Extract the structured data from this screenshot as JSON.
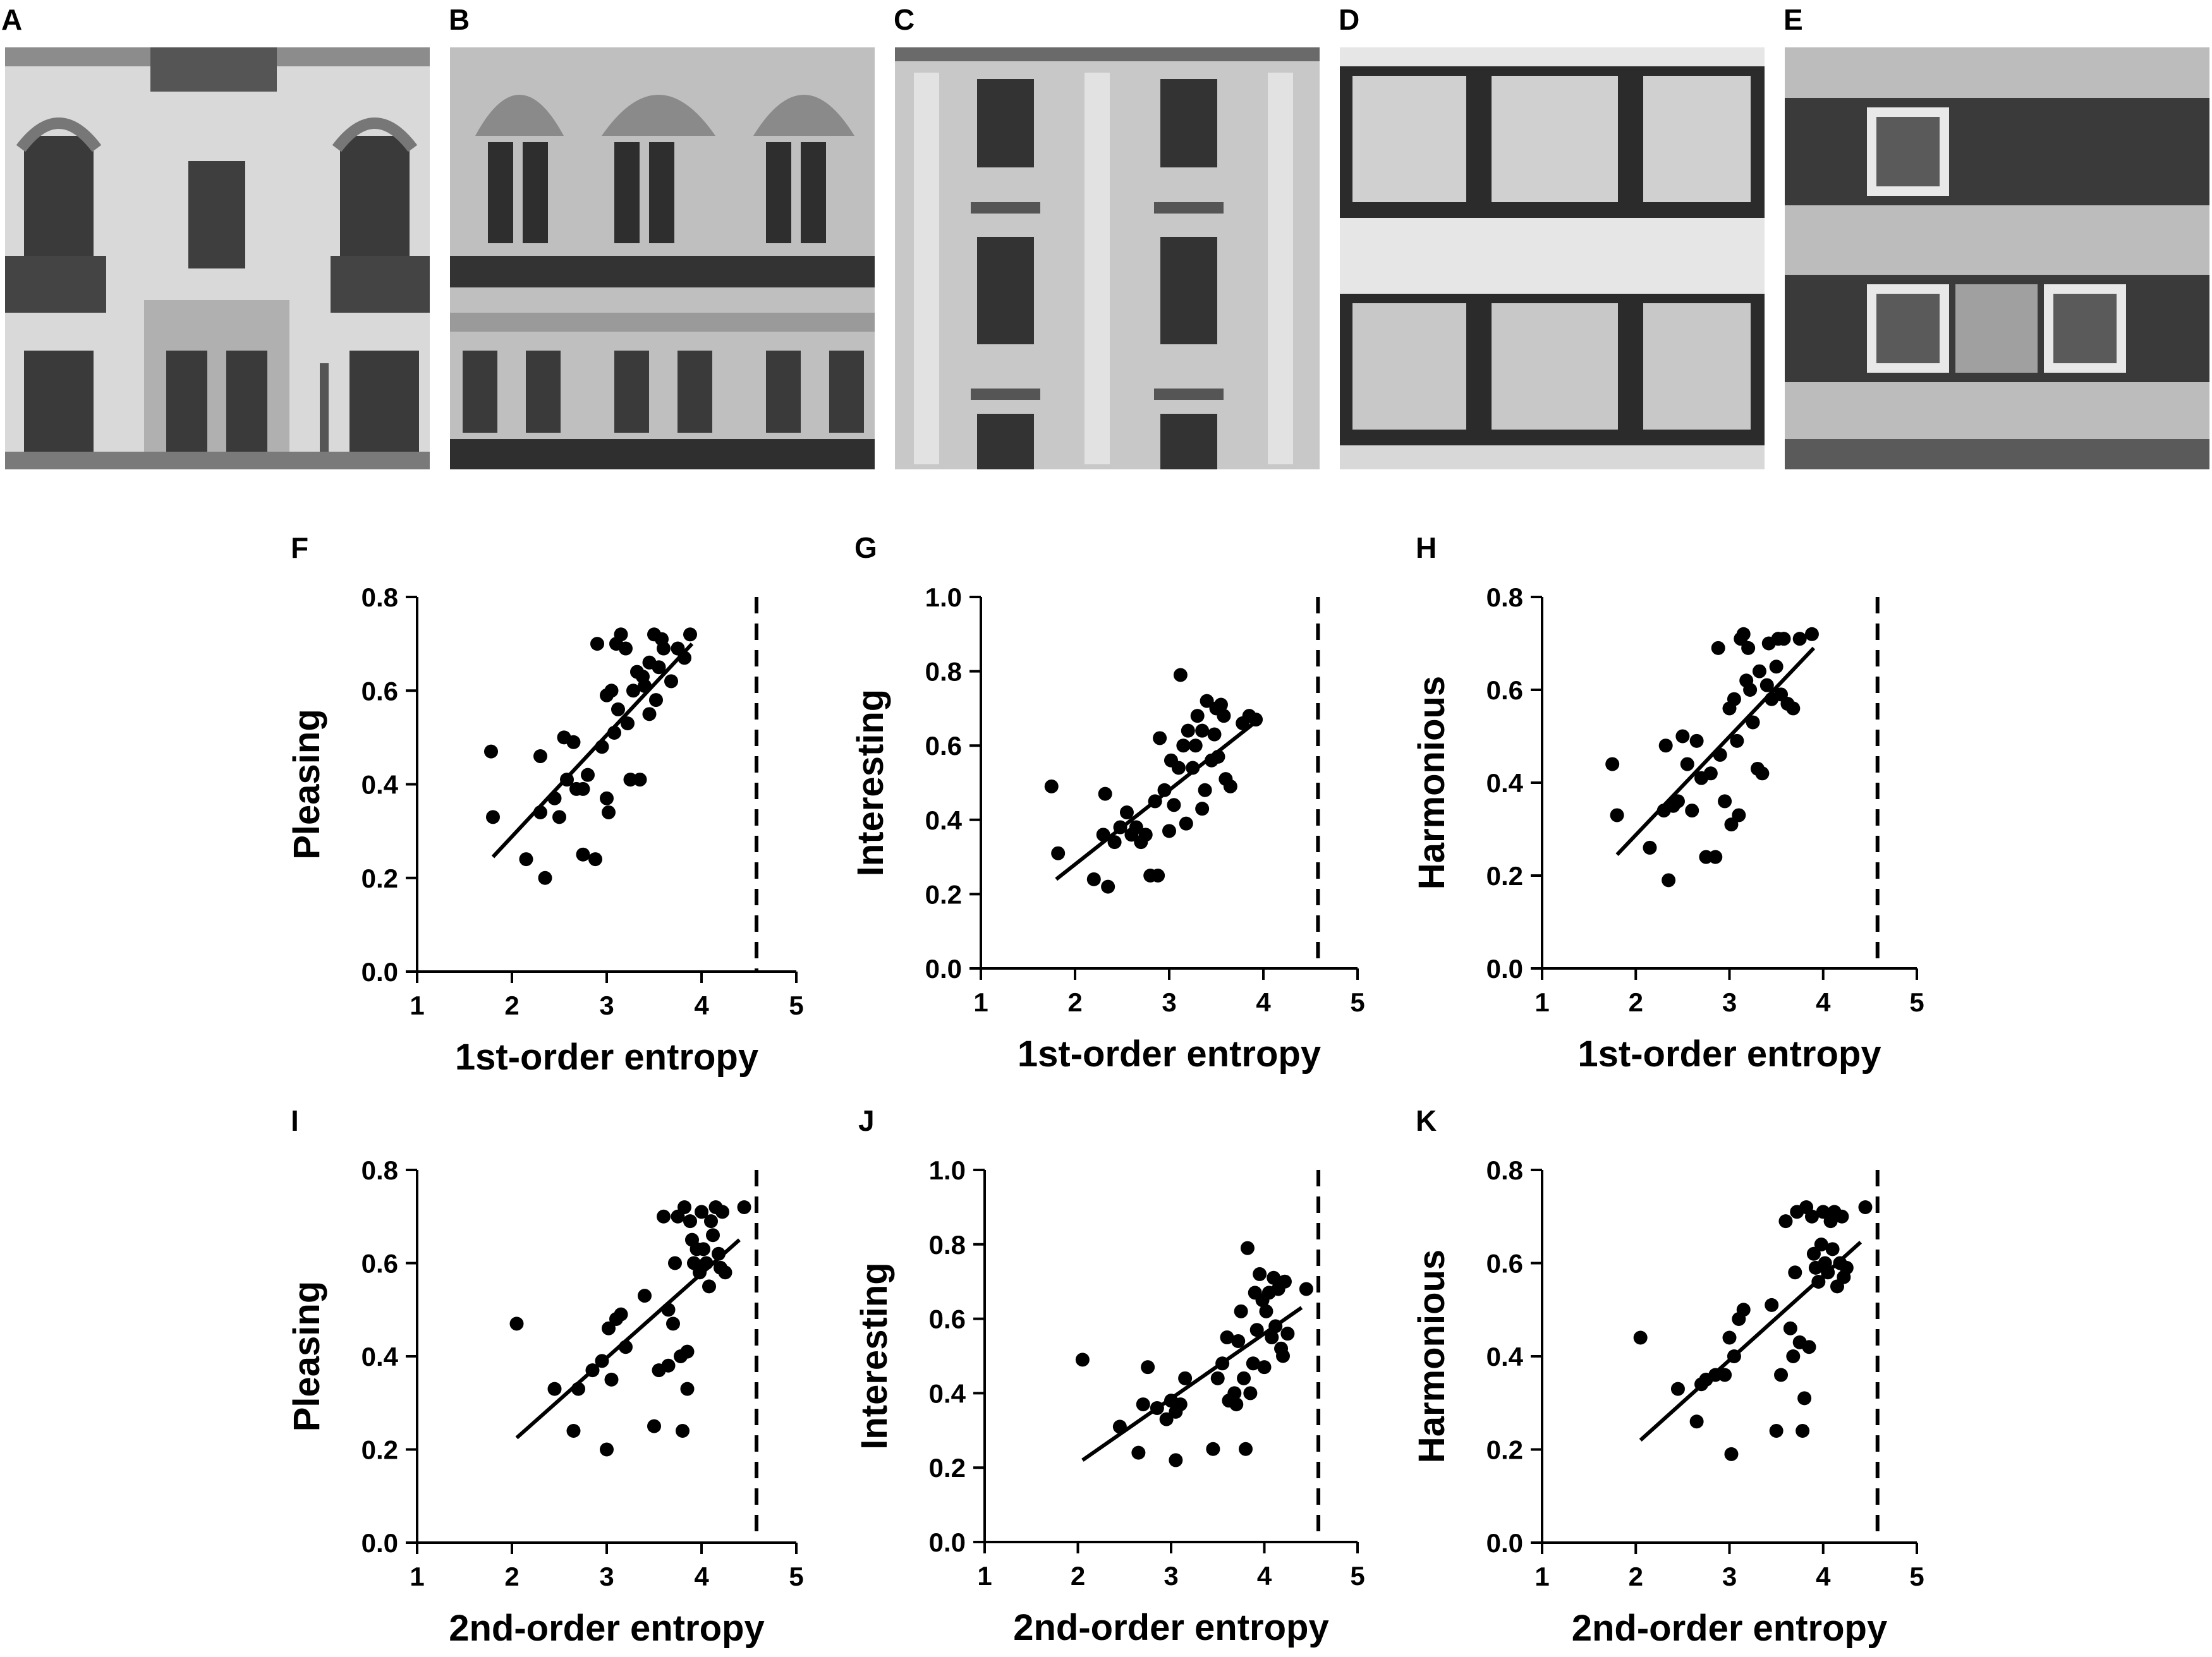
{
  "photo_panels": [
    {
      "label": "A"
    },
    {
      "label": "B"
    },
    {
      "label": "C"
    },
    {
      "label": "D"
    },
    {
      "label": "E"
    }
  ],
  "chart_data": [
    {
      "id": "F",
      "type": "scatter",
      "xlabel": "1st-order entropy",
      "ylabel": "Pleasing",
      "xlim": [
        1,
        5
      ],
      "ylim": [
        0,
        0.8
      ],
      "xticks": [
        "1",
        "2",
        "3",
        "4",
        "5"
      ],
      "yticks": [
        "0.0",
        "0.2",
        "0.4",
        "0.6",
        "0.8"
      ],
      "fit_line": {
        "x": [
          1.8,
          3.9
        ],
        "y": [
          0.245,
          0.7
        ]
      },
      "reference_line_x": 4.58,
      "points": [
        [
          1.78,
          0.47
        ],
        [
          1.8,
          0.33
        ],
        [
          2.15,
          0.24
        ],
        [
          2.3,
          0.46
        ],
        [
          2.3,
          0.34
        ],
        [
          2.35,
          0.2
        ],
        [
          2.45,
          0.37
        ],
        [
          2.5,
          0.33
        ],
        [
          2.55,
          0.5
        ],
        [
          2.58,
          0.41
        ],
        [
          2.65,
          0.49
        ],
        [
          2.68,
          0.39
        ],
        [
          2.75,
          0.39
        ],
        [
          2.75,
          0.25
        ],
        [
          2.8,
          0.42
        ],
        [
          2.88,
          0.24
        ],
        [
          2.9,
          0.7
        ],
        [
          2.95,
          0.48
        ],
        [
          3.0,
          0.37
        ],
        [
          3.0,
          0.59
        ],
        [
          3.02,
          0.34
        ],
        [
          3.05,
          0.6
        ],
        [
          3.08,
          0.51
        ],
        [
          3.1,
          0.7
        ],
        [
          3.12,
          0.56
        ],
        [
          3.15,
          0.72
        ],
        [
          3.2,
          0.69
        ],
        [
          3.22,
          0.53
        ],
        [
          3.25,
          0.41
        ],
        [
          3.28,
          0.6
        ],
        [
          3.32,
          0.64
        ],
        [
          3.35,
          0.41
        ],
        [
          3.38,
          0.63
        ],
        [
          3.4,
          0.61
        ],
        [
          3.45,
          0.66
        ],
        [
          3.45,
          0.55
        ],
        [
          3.5,
          0.72
        ],
        [
          3.52,
          0.58
        ],
        [
          3.55,
          0.65
        ],
        [
          3.58,
          0.71
        ],
        [
          3.6,
          0.69
        ],
        [
          3.68,
          0.62
        ],
        [
          3.75,
          0.69
        ],
        [
          3.82,
          0.67
        ],
        [
          3.88,
          0.72
        ]
      ]
    },
    {
      "id": "G",
      "type": "scatter",
      "xlabel": "1st-order entropy",
      "ylabel": "Interesting",
      "xlim": [
        1,
        5
      ],
      "ylim": [
        0,
        1.0
      ],
      "xticks": [
        "1",
        "2",
        "3",
        "4",
        "5"
      ],
      "yticks": [
        "0.0",
        "0.2",
        "0.4",
        "0.6",
        "0.8",
        "1.0"
      ],
      "fit_line": {
        "x": [
          1.8,
          3.95
        ],
        "y": [
          0.24,
          0.67
        ]
      },
      "reference_line_x": 4.58,
      "points": [
        [
          1.75,
          0.49
        ],
        [
          1.82,
          0.31
        ],
        [
          2.2,
          0.24
        ],
        [
          2.3,
          0.36
        ],
        [
          2.32,
          0.47
        ],
        [
          2.35,
          0.22
        ],
        [
          2.42,
          0.34
        ],
        [
          2.48,
          0.38
        ],
        [
          2.55,
          0.42
        ],
        [
          2.6,
          0.36
        ],
        [
          2.65,
          0.38
        ],
        [
          2.7,
          0.34
        ],
        [
          2.75,
          0.36
        ],
        [
          2.8,
          0.25
        ],
        [
          2.85,
          0.45
        ],
        [
          2.88,
          0.25
        ],
        [
          2.9,
          0.62
        ],
        [
          2.95,
          0.48
        ],
        [
          3.0,
          0.37
        ],
        [
          3.02,
          0.56
        ],
        [
          3.05,
          0.44
        ],
        [
          3.1,
          0.54
        ],
        [
          3.12,
          0.79
        ],
        [
          3.15,
          0.6
        ],
        [
          3.18,
          0.39
        ],
        [
          3.2,
          0.64
        ],
        [
          3.25,
          0.54
        ],
        [
          3.28,
          0.6
        ],
        [
          3.3,
          0.68
        ],
        [
          3.35,
          0.64
        ],
        [
          3.35,
          0.43
        ],
        [
          3.38,
          0.48
        ],
        [
          3.4,
          0.72
        ],
        [
          3.45,
          0.56
        ],
        [
          3.48,
          0.63
        ],
        [
          3.5,
          0.7
        ],
        [
          3.52,
          0.57
        ],
        [
          3.55,
          0.71
        ],
        [
          3.58,
          0.68
        ],
        [
          3.6,
          0.51
        ],
        [
          3.65,
          0.49
        ],
        [
          3.78,
          0.66
        ],
        [
          3.85,
          0.68
        ],
        [
          3.92,
          0.67
        ]
      ]
    },
    {
      "id": "H",
      "type": "scatter",
      "xlabel": "1st-order entropy",
      "ylabel": "Harmonious",
      "xlim": [
        1,
        5
      ],
      "ylim": [
        0,
        0.8
      ],
      "xticks": [
        "1",
        "2",
        "3",
        "4",
        "5"
      ],
      "yticks": [
        "0.0",
        "0.2",
        "0.4",
        "0.6",
        "0.8"
      ],
      "fit_line": {
        "x": [
          1.8,
          3.9
        ],
        "y": [
          0.245,
          0.69
        ]
      },
      "reference_line_x": 4.58,
      "points": [
        [
          1.75,
          0.44
        ],
        [
          1.8,
          0.33
        ],
        [
          2.15,
          0.26
        ],
        [
          2.3,
          0.34
        ],
        [
          2.32,
          0.48
        ],
        [
          2.35,
          0.19
        ],
        [
          2.4,
          0.35
        ],
        [
          2.45,
          0.36
        ],
        [
          2.5,
          0.5
        ],
        [
          2.55,
          0.44
        ],
        [
          2.6,
          0.34
        ],
        [
          2.65,
          0.49
        ],
        [
          2.7,
          0.41
        ],
        [
          2.75,
          0.24
        ],
        [
          2.8,
          0.42
        ],
        [
          2.85,
          0.24
        ],
        [
          2.88,
          0.69
        ],
        [
          2.9,
          0.46
        ],
        [
          2.95,
          0.36
        ],
        [
          3.0,
          0.56
        ],
        [
          3.02,
          0.31
        ],
        [
          3.05,
          0.58
        ],
        [
          3.08,
          0.49
        ],
        [
          3.1,
          0.33
        ],
        [
          3.12,
          0.71
        ],
        [
          3.15,
          0.72
        ],
        [
          3.18,
          0.62
        ],
        [
          3.2,
          0.69
        ],
        [
          3.22,
          0.6
        ],
        [
          3.25,
          0.53
        ],
        [
          3.3,
          0.43
        ],
        [
          3.32,
          0.64
        ],
        [
          3.35,
          0.42
        ],
        [
          3.4,
          0.61
        ],
        [
          3.42,
          0.7
        ],
        [
          3.45,
          0.58
        ],
        [
          3.5,
          0.65
        ],
        [
          3.52,
          0.71
        ],
        [
          3.55,
          0.59
        ],
        [
          3.58,
          0.71
        ],
        [
          3.62,
          0.57
        ],
        [
          3.68,
          0.56
        ],
        [
          3.75,
          0.71
        ],
        [
          3.88,
          0.72
        ]
      ]
    },
    {
      "id": "I",
      "type": "scatter",
      "xlabel": "2nd-order entropy",
      "ylabel": "Pleasing",
      "xlim": [
        1,
        5
      ],
      "ylim": [
        0,
        0.8
      ],
      "xticks": [
        "1",
        "2",
        "3",
        "4",
        "5"
      ],
      "yticks": [
        "0.0",
        "0.2",
        "0.4",
        "0.6",
        "0.8"
      ],
      "fit_line": {
        "x": [
          2.05,
          4.4
        ],
        "y": [
          0.225,
          0.65
        ]
      },
      "reference_line_x": 4.58,
      "points": [
        [
          2.05,
          0.47
        ],
        [
          2.45,
          0.33
        ],
        [
          2.65,
          0.24
        ],
        [
          2.7,
          0.33
        ],
        [
          2.85,
          0.37
        ],
        [
          2.95,
          0.39
        ],
        [
          3.0,
          0.2
        ],
        [
          3.02,
          0.46
        ],
        [
          3.05,
          0.35
        ],
        [
          3.1,
          0.48
        ],
        [
          3.15,
          0.49
        ],
        [
          3.2,
          0.42
        ],
        [
          3.4,
          0.53
        ],
        [
          3.5,
          0.25
        ],
        [
          3.55,
          0.37
        ],
        [
          3.6,
          0.7
        ],
        [
          3.65,
          0.5
        ],
        [
          3.65,
          0.38
        ],
        [
          3.7,
          0.47
        ],
        [
          3.72,
          0.6
        ],
        [
          3.75,
          0.7
        ],
        [
          3.78,
          0.4
        ],
        [
          3.8,
          0.24
        ],
        [
          3.82,
          0.72
        ],
        [
          3.85,
          0.33
        ],
        [
          3.85,
          0.41
        ],
        [
          3.88,
          0.69
        ],
        [
          3.9,
          0.65
        ],
        [
          3.92,
          0.6
        ],
        [
          3.95,
          0.63
        ],
        [
          3.98,
          0.58
        ],
        [
          4.0,
          0.71
        ],
        [
          4.02,
          0.63
        ],
        [
          4.05,
          0.6
        ],
        [
          4.08,
          0.55
        ],
        [
          4.1,
          0.69
        ],
        [
          4.12,
          0.66
        ],
        [
          4.15,
          0.72
        ],
        [
          4.18,
          0.62
        ],
        [
          4.2,
          0.59
        ],
        [
          4.22,
          0.71
        ],
        [
          4.25,
          0.58
        ],
        [
          4.45,
          0.72
        ]
      ]
    },
    {
      "id": "J",
      "type": "scatter",
      "xlabel": "2nd-order entropy",
      "ylabel": "Interesting",
      "xlim": [
        1,
        5
      ],
      "ylim": [
        0,
        1.0
      ],
      "xticks": [
        "1",
        "2",
        "3",
        "4",
        "5"
      ],
      "yticks": [
        "0.0",
        "0.2",
        "0.4",
        "0.6",
        "0.8",
        "1.0"
      ],
      "fit_line": {
        "x": [
          2.05,
          4.4
        ],
        "y": [
          0.22,
          0.63
        ]
      },
      "reference_line_x": 4.58,
      "points": [
        [
          2.05,
          0.49
        ],
        [
          2.45,
          0.31
        ],
        [
          2.65,
          0.24
        ],
        [
          2.7,
          0.37
        ],
        [
          2.75,
          0.47
        ],
        [
          2.85,
          0.36
        ],
        [
          2.95,
          0.33
        ],
        [
          3.0,
          0.38
        ],
        [
          3.05,
          0.35
        ],
        [
          3.05,
          0.22
        ],
        [
          3.1,
          0.37
        ],
        [
          3.15,
          0.44
        ],
        [
          3.45,
          0.25
        ],
        [
          3.5,
          0.44
        ],
        [
          3.55,
          0.48
        ],
        [
          3.6,
          0.55
        ],
        [
          3.62,
          0.38
        ],
        [
          3.68,
          0.4
        ],
        [
          3.7,
          0.37
        ],
        [
          3.72,
          0.54
        ],
        [
          3.75,
          0.62
        ],
        [
          3.78,
          0.44
        ],
        [
          3.8,
          0.25
        ],
        [
          3.82,
          0.79
        ],
        [
          3.85,
          0.4
        ],
        [
          3.88,
          0.48
        ],
        [
          3.9,
          0.67
        ],
        [
          3.92,
          0.57
        ],
        [
          3.95,
          0.72
        ],
        [
          3.98,
          0.65
        ],
        [
          4.0,
          0.47
        ],
        [
          4.02,
          0.62
        ],
        [
          4.05,
          0.67
        ],
        [
          4.08,
          0.55
        ],
        [
          4.1,
          0.71
        ],
        [
          4.12,
          0.58
        ],
        [
          4.15,
          0.68
        ],
        [
          4.18,
          0.52
        ],
        [
          4.2,
          0.5
        ],
        [
          4.22,
          0.7
        ],
        [
          4.25,
          0.56
        ],
        [
          4.45,
          0.68
        ]
      ]
    },
    {
      "id": "K",
      "type": "scatter",
      "xlabel": "2nd-order entropy",
      "ylabel": "Harmonious",
      "xlim": [
        1,
        5
      ],
      "ylim": [
        0,
        0.8
      ],
      "xticks": [
        "1",
        "2",
        "3",
        "4",
        "5"
      ],
      "yticks": [
        "0.0",
        "0.2",
        "0.4",
        "0.6",
        "0.8"
      ],
      "fit_line": {
        "x": [
          2.05,
          4.4
        ],
        "y": [
          0.22,
          0.645
        ]
      },
      "reference_line_x": 4.58,
      "points": [
        [
          2.05,
          0.44
        ],
        [
          2.45,
          0.33
        ],
        [
          2.65,
          0.26
        ],
        [
          2.7,
          0.34
        ],
        [
          2.75,
          0.35
        ],
        [
          2.85,
          0.36
        ],
        [
          2.95,
          0.36
        ],
        [
          3.0,
          0.44
        ],
        [
          3.02,
          0.19
        ],
        [
          3.05,
          0.4
        ],
        [
          3.1,
          0.48
        ],
        [
          3.15,
          0.5
        ],
        [
          3.45,
          0.51
        ],
        [
          3.5,
          0.24
        ],
        [
          3.55,
          0.36
        ],
        [
          3.6,
          0.69
        ],
        [
          3.65,
          0.46
        ],
        [
          3.68,
          0.4
        ],
        [
          3.7,
          0.58
        ],
        [
          3.72,
          0.71
        ],
        [
          3.75,
          0.43
        ],
        [
          3.78,
          0.24
        ],
        [
          3.8,
          0.31
        ],
        [
          3.82,
          0.72
        ],
        [
          3.85,
          0.42
        ],
        [
          3.88,
          0.7
        ],
        [
          3.9,
          0.62
        ],
        [
          3.92,
          0.59
        ],
        [
          3.95,
          0.56
        ],
        [
          3.98,
          0.64
        ],
        [
          4.0,
          0.71
        ],
        [
          4.02,
          0.6
        ],
        [
          4.05,
          0.58
        ],
        [
          4.08,
          0.69
        ],
        [
          4.1,
          0.63
        ],
        [
          4.12,
          0.71
        ],
        [
          4.15,
          0.55
        ],
        [
          4.18,
          0.6
        ],
        [
          4.2,
          0.7
        ],
        [
          4.22,
          0.57
        ],
        [
          4.25,
          0.59
        ],
        [
          4.45,
          0.72
        ]
      ]
    }
  ]
}
